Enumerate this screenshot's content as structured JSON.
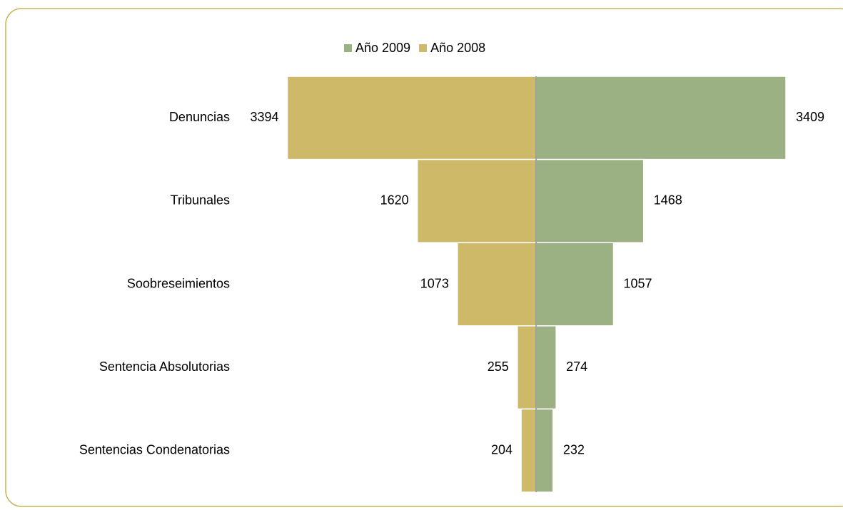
{
  "chart_data": {
    "type": "butterfly",
    "categories": [
      "Denuncias",
      "Tribunales",
      "Soobreseimientos",
      "Sentencia Absolutorias",
      "Sentencias Condenatorias"
    ],
    "series": [
      {
        "name": "Año 2009",
        "color": "#9bb184",
        "side": "right",
        "values": [
          3409,
          1468,
          1057,
          274,
          232
        ]
      },
      {
        "name": "Año 2008",
        "color": "#cdb967",
        "side": "left",
        "values": [
          3394,
          1620,
          1073,
          255,
          204
        ]
      }
    ],
    "legend": "top"
  }
}
